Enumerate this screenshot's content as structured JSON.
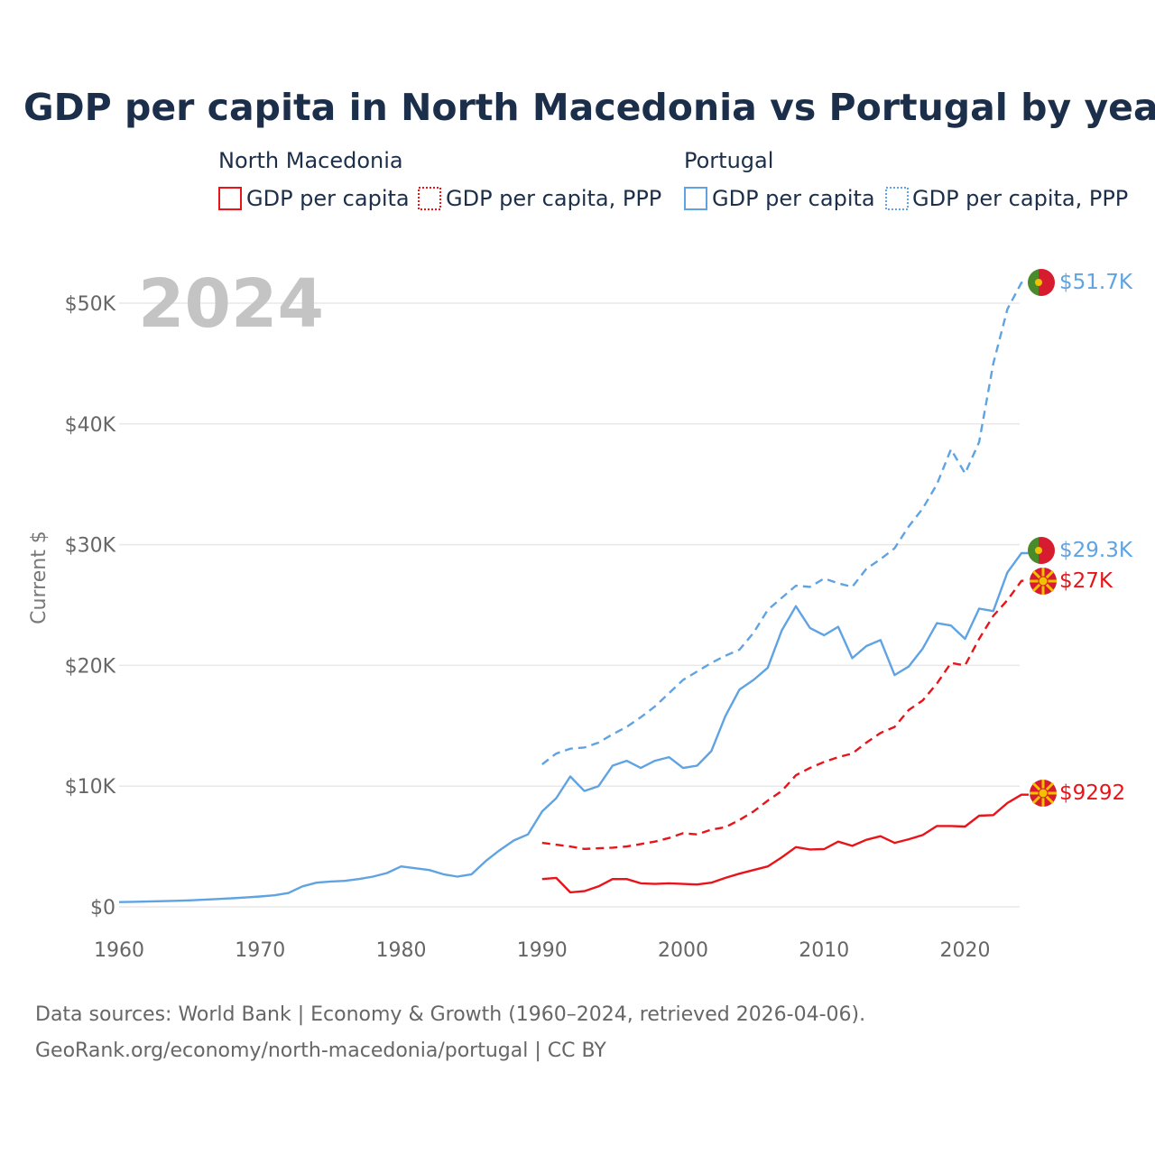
{
  "chart_data": {
    "type": "line",
    "title": "GDP per capita in North Macedonia vs Portugal by year",
    "year_label": "2024",
    "ylabel": "Current $",
    "xlabel": "",
    "xlim": [
      1960,
      2024
    ],
    "ylim": [
      0,
      52000
    ],
    "x_ticks": [
      1960,
      1970,
      1980,
      1990,
      2000,
      2010,
      2020
    ],
    "x_tick_labels": [
      "1960",
      "1970",
      "1980",
      "1990",
      "2000",
      "2010",
      "2020"
    ],
    "y_ticks": [
      0,
      10000,
      20000,
      30000,
      40000,
      50000
    ],
    "y_tick_labels": [
      "$0",
      "$10K",
      "$20K",
      "$30K",
      "$40K",
      "$50K"
    ],
    "grid": true,
    "legend": {
      "position": "top",
      "groups": [
        {
          "country": "North Macedonia",
          "items": [
            "GDP per capita",
            "GDP per capita, PPP"
          ]
        },
        {
          "country": "Portugal",
          "items": [
            "GDP per capita",
            "GDP per capita, PPP"
          ]
        }
      ]
    },
    "colors": {
      "north_macedonia": "#e8141a",
      "portugal": "#5fa3e3"
    },
    "series": [
      {
        "name": "Portugal GDP per capita",
        "country": "Portugal",
        "style": "solid",
        "color": "#5fa3e3",
        "x": [
          1960,
          1961,
          1962,
          1963,
          1964,
          1965,
          1966,
          1967,
          1968,
          1969,
          1970,
          1971,
          1972,
          1973,
          1974,
          1975,
          1976,
          1977,
          1978,
          1979,
          1980,
          1981,
          1982,
          1983,
          1984,
          1985,
          1986,
          1987,
          1988,
          1989,
          1990,
          1991,
          1992,
          1993,
          1994,
          1995,
          1996,
          1997,
          1998,
          1999,
          2000,
          2001,
          2002,
          2003,
          2004,
          2005,
          2006,
          2007,
          2008,
          2009,
          2010,
          2011,
          2012,
          2013,
          2014,
          2015,
          2016,
          2017,
          2018,
          2019,
          2020,
          2021,
          2022,
          2023,
          2024
        ],
        "values": [
          395,
          420,
          440,
          470,
          500,
          540,
          590,
          650,
          710,
          780,
          860,
          960,
          1140,
          1700,
          2000,
          2100,
          2150,
          2300,
          2500,
          2800,
          3350,
          3200,
          3050,
          2700,
          2500,
          2700,
          3800,
          4700,
          5500,
          6000,
          7900,
          9000,
          10800,
          9600,
          10000,
          11700,
          12100,
          11500,
          12100,
          12400,
          11500,
          11700,
          12900,
          15800,
          18000,
          18800,
          19800,
          22900,
          24900,
          23100,
          22500,
          23200,
          20600,
          21600,
          22100,
          19200,
          19900,
          21400,
          23500,
          23300,
          22200,
          24700,
          24500,
          27700,
          29300
        ],
        "end_label": "$29.3K"
      },
      {
        "name": "Portugal GDP per capita, PPP",
        "country": "Portugal",
        "style": "dashed",
        "color": "#5fa3e3",
        "x": [
          1990,
          1991,
          1992,
          1993,
          1994,
          1995,
          1996,
          1997,
          1998,
          1999,
          2000,
          2001,
          2002,
          2003,
          2004,
          2005,
          2006,
          2007,
          2008,
          2009,
          2010,
          2011,
          2012,
          2013,
          2014,
          2015,
          2016,
          2017,
          2018,
          2019,
          2020,
          2021,
          2022,
          2023,
          2024
        ],
        "values": [
          11800,
          12700,
          13100,
          13200,
          13600,
          14300,
          14900,
          15700,
          16600,
          17700,
          18800,
          19500,
          20200,
          20800,
          21300,
          22700,
          24600,
          25600,
          26600,
          26500,
          27200,
          26800,
          26500,
          28000,
          28800,
          29700,
          31500,
          33000,
          35000,
          37900,
          35900,
          38500,
          45000,
          49500,
          51700
        ],
        "end_label": "$51.7K"
      },
      {
        "name": "North Macedonia GDP per capita",
        "country": "North Macedonia",
        "style": "solid",
        "color": "#e8141a",
        "x": [
          1990,
          1991,
          1992,
          1993,
          1994,
          1995,
          1996,
          1997,
          1998,
          1999,
          2000,
          2001,
          2002,
          2003,
          2004,
          2005,
          2006,
          2007,
          2008,
          2009,
          2010,
          2011,
          2012,
          2013,
          2014,
          2015,
          2016,
          2017,
          2018,
          2019,
          2020,
          2021,
          2022,
          2023,
          2024
        ],
        "values": [
          2300,
          2400,
          1200,
          1300,
          1700,
          2300,
          2300,
          1950,
          1900,
          1950,
          1900,
          1850,
          2000,
          2400,
          2750,
          3050,
          3350,
          4100,
          4950,
          4750,
          4780,
          5400,
          5050,
          5550,
          5850,
          5300,
          5600,
          5950,
          6700,
          6700,
          6650,
          7550,
          7600,
          8600,
          9292
        ],
        "end_label": "$9292"
      },
      {
        "name": "North Macedonia GDP per capita, PPP",
        "country": "North Macedonia",
        "style": "dashed",
        "color": "#e8141a",
        "x": [
          1990,
          1991,
          1992,
          1993,
          1994,
          1995,
          1996,
          1997,
          1998,
          1999,
          2000,
          2001,
          2002,
          2003,
          2004,
          2005,
          2006,
          2007,
          2008,
          2009,
          2010,
          2011,
          2012,
          2013,
          2014,
          2015,
          2016,
          2017,
          2018,
          2019,
          2020,
          2021,
          2022,
          2023,
          2024
        ],
        "values": [
          5300,
          5150,
          5000,
          4800,
          4850,
          4900,
          5000,
          5200,
          5400,
          5700,
          6100,
          6000,
          6400,
          6600,
          7200,
          7900,
          8800,
          9600,
          10900,
          11500,
          12000,
          12400,
          12700,
          13600,
          14400,
          14900,
          16300,
          17100,
          18500,
          20200,
          20000,
          22200,
          24100,
          25400,
          27000
        ],
        "end_label": "$27K"
      }
    ]
  },
  "source": {
    "line1": "Data sources: World Bank | Economy & Growth (1960–2024, retrieved 2026-04-06).",
    "line2": "GeoRank.org/economy/north-macedonia/portugal | CC BY"
  }
}
